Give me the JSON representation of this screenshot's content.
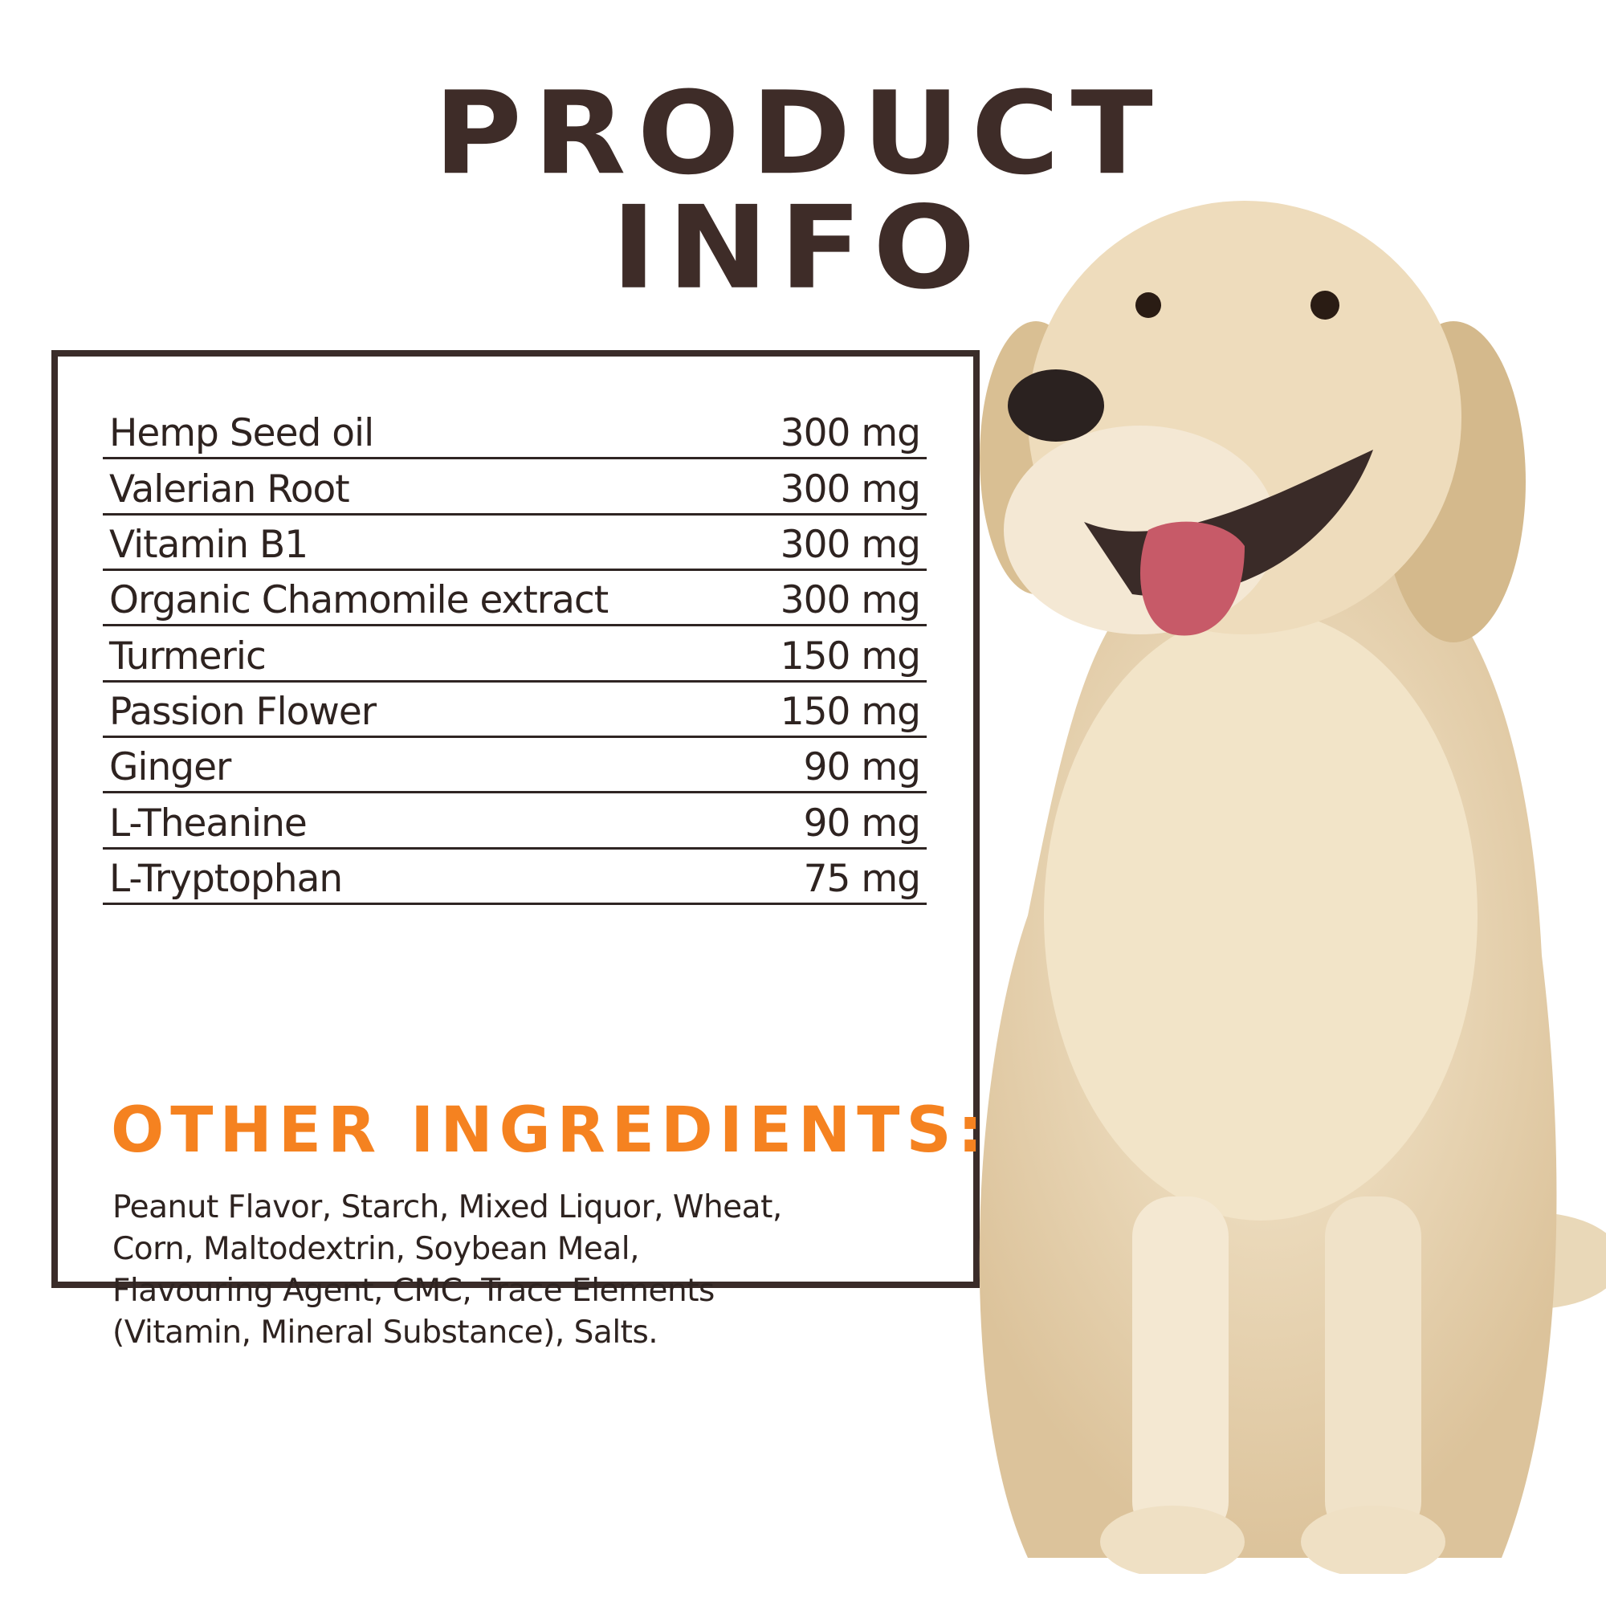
{
  "title": "PRODUCT INFO",
  "ingredients": [
    {
      "name": "Hemp Seed  oil",
      "amount": "300 mg"
    },
    {
      "name": "Valerian Root",
      "amount": "300 mg"
    },
    {
      "name": "Vitamin B1",
      "amount": "300 mg"
    },
    {
      "name": "Organic Chamomile extract",
      "amount": "300 mg"
    },
    {
      "name": "Turmeric",
      "amount": "150 mg"
    },
    {
      "name": "Passion Flower",
      "amount": "150 mg"
    },
    {
      "name": "Ginger",
      "amount": "90 mg"
    },
    {
      "name": "L-Theanine",
      "amount": "90 mg"
    },
    {
      "name": "L-Tryptophan",
      "amount": "75 mg"
    }
  ],
  "other": {
    "heading": "OTHER INGREDIENTS:",
    "lines": [
      "Peanut Flavor, Starch, Mixed Liquor, Wheat,",
      "Corn, Maltodextrin, Soybean  Meal,",
      "Flavouring Agent, CMC, Trace Elements",
      "(Vitamin, Mineral Substance), Salts."
    ]
  },
  "colors": {
    "brown": "#3e2c28",
    "orange": "#f58220"
  },
  "image": {
    "subject": "golden-retriever-photo"
  }
}
